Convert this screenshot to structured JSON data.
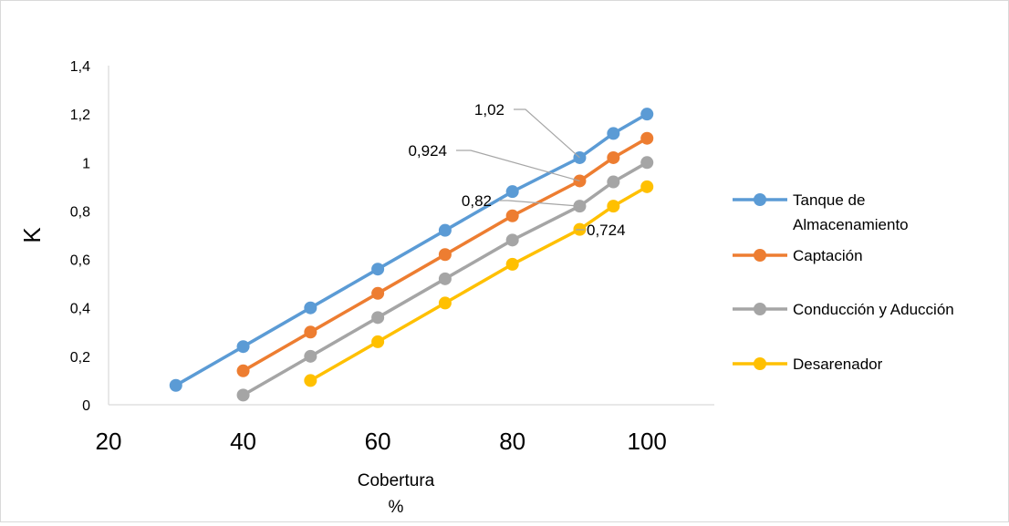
{
  "chart_data": {
    "type": "line",
    "title": "",
    "xlabel": "Cobertura",
    "xlabel_line2": "%",
    "ylabel": "K",
    "xlim": [
      20,
      110
    ],
    "ylim": [
      0,
      1.4
    ],
    "x_ticks": [
      "20",
      "40",
      "60",
      "80",
      "100"
    ],
    "y_ticks": [
      "0",
      "0,2",
      "0,4",
      "0,6",
      "0,8",
      "1",
      "1,2",
      "1,4"
    ],
    "grid": false,
    "legend_position": "right",
    "series": [
      {
        "name": "Tanque de Almacenamiento",
        "name_lines": [
          "Tanque de",
          "Almacenamiento"
        ],
        "color": "#5b9bd5",
        "x": [
          30,
          40,
          50,
          60,
          70,
          80,
          90,
          95,
          100
        ],
        "y": [
          0.08,
          0.24,
          0.4,
          0.56,
          0.72,
          0.88,
          1.02,
          1.12,
          1.2
        ]
      },
      {
        "name": "Captación",
        "name_lines": [
          "Captación"
        ],
        "color": "#ed7d31",
        "x": [
          40,
          50,
          60,
          70,
          80,
          90,
          95,
          100
        ],
        "y": [
          0.14,
          0.3,
          0.46,
          0.62,
          0.78,
          0.924,
          1.02,
          1.1
        ]
      },
      {
        "name": "Conducción y Aducción",
        "name_lines": [
          "Conducción y Aducción"
        ],
        "color": "#a5a5a5",
        "x": [
          40,
          50,
          60,
          70,
          80,
          90,
          95,
          100
        ],
        "y": [
          0.04,
          0.2,
          0.36,
          0.52,
          0.68,
          0.82,
          0.92,
          1.0
        ]
      },
      {
        "name": "Desarenador",
        "name_lines": [
          "Desarenador"
        ],
        "color": "#ffc000",
        "x": [
          50,
          60,
          70,
          80,
          90,
          95,
          100
        ],
        "y": [
          0.1,
          0.26,
          0.42,
          0.58,
          0.724,
          0.82,
          0.9
        ]
      }
    ],
    "annotations": [
      {
        "text": "1,02",
        "series": 0,
        "point": 6
      },
      {
        "text": "0,924",
        "series": 1,
        "point": 5
      },
      {
        "text": "0,82",
        "series": 2,
        "point": 5
      },
      {
        "text": "0,724",
        "series": 3,
        "point": 4
      }
    ]
  }
}
